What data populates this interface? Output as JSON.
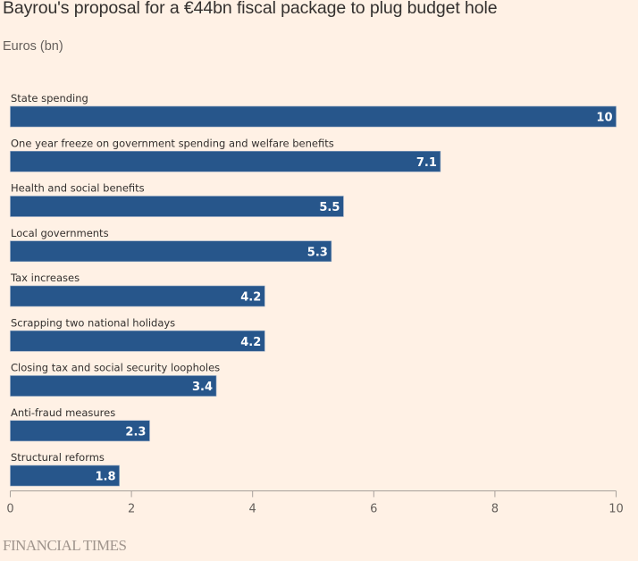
{
  "chart_data": {
    "type": "bar",
    "orientation": "horizontal",
    "title": "Bayrou's proposal for a €44bn fiscal package to plug budget hole",
    "subtitle": "Euros (bn)",
    "xlabel": "",
    "ylabel": "",
    "xlim": [
      0,
      10
    ],
    "xticks": [
      0,
      2,
      4,
      6,
      8,
      10
    ],
    "grid": false,
    "legend": "none",
    "categories": [
      "State spending",
      "One year freeze on government spending and welfare benefits",
      "Health and social benefits",
      "Local governments",
      "Tax increases",
      "Scrapping two national holidays",
      "Closing tax and social security loopholes",
      "Anti-fraud measures",
      "Structural reforms"
    ],
    "values": [
      10,
      7.1,
      5.5,
      5.3,
      4.2,
      4.2,
      3.4,
      2.3,
      1.8
    ],
    "value_labels": [
      "10",
      "7.1",
      "5.5",
      "5.3",
      "4.2",
      "4.2",
      "3.4",
      "2.3",
      "1.8"
    ],
    "bar_color": "#27568b"
  },
  "source": "FINANCIAL TIMES",
  "colors": {
    "background": "#fff1e5",
    "bar": "#27568b",
    "axis": "#a7a09a"
  }
}
